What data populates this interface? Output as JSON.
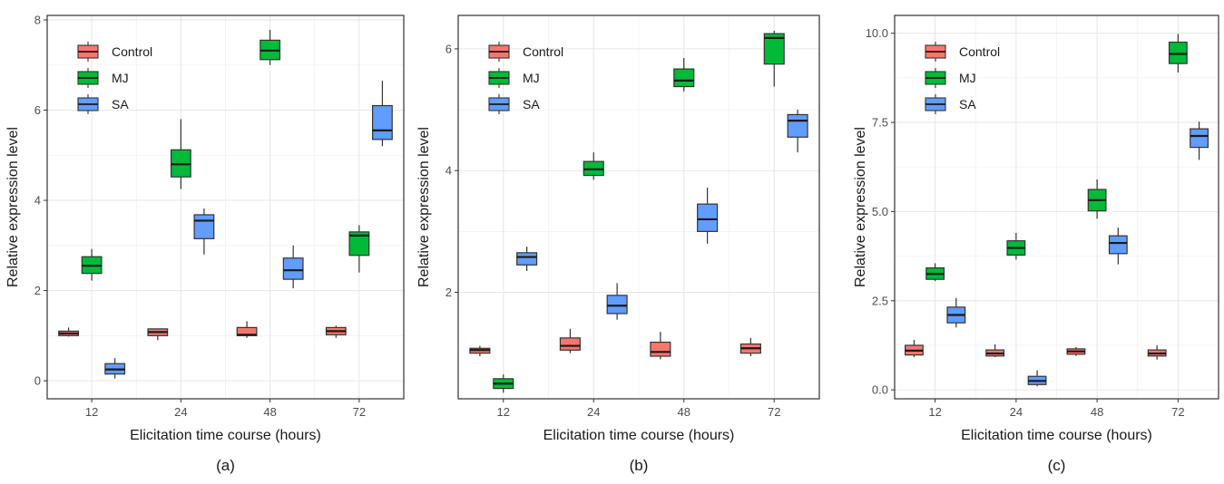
{
  "series_colors": {
    "Control": "#F8766D",
    "MJ": "#00BA38",
    "SA": "#619CFF"
  },
  "chart_data": [
    {
      "type": "box",
      "panel_label": "(a)",
      "xlabel": "Elicitation time course (hours)",
      "ylabel": "Relative expression level",
      "categories": [
        "12",
        "24",
        "48",
        "72"
      ],
      "ylim": [
        -0.4,
        8.1
      ],
      "yticks": [
        0,
        2,
        4,
        6,
        8
      ],
      "ytick_labels": [
        "0",
        "2",
        "4",
        "6",
        "8"
      ],
      "grid": true,
      "legend": {
        "position": "top-left",
        "entries": [
          "Control",
          "MJ",
          "SA"
        ]
      },
      "series": [
        {
          "name": "Control",
          "boxes": [
            {
              "min": 0.98,
              "q1": 1.0,
              "median": 1.05,
              "q3": 1.1,
              "max": 1.18
            },
            {
              "min": 0.9,
              "q1": 1.0,
              "median": 1.08,
              "q3": 1.15,
              "max": 1.15
            },
            {
              "min": 0.95,
              "q1": 1.0,
              "median": 1.02,
              "q3": 1.18,
              "max": 1.32
            },
            {
              "min": 0.95,
              "q1": 1.02,
              "median": 1.1,
              "q3": 1.18,
              "max": 1.22
            }
          ]
        },
        {
          "name": "MJ",
          "boxes": [
            {
              "min": 2.22,
              "q1": 2.38,
              "median": 2.55,
              "q3": 2.75,
              "max": 2.92
            },
            {
              "min": 4.25,
              "q1": 4.52,
              "median": 4.8,
              "q3": 5.12,
              "max": 5.8
            },
            {
              "min": 7.0,
              "q1": 7.12,
              "median": 7.32,
              "q3": 7.55,
              "max": 7.78
            },
            {
              "min": 2.4,
              "q1": 2.78,
              "median": 3.22,
              "q3": 3.3,
              "max": 3.45
            }
          ]
        },
        {
          "name": "SA",
          "boxes": [
            {
              "min": 0.05,
              "q1": 0.15,
              "median": 0.25,
              "q3": 0.38,
              "max": 0.5
            },
            {
              "min": 2.8,
              "q1": 3.15,
              "median": 3.55,
              "q3": 3.68,
              "max": 3.82
            },
            {
              "min": 2.05,
              "q1": 2.25,
              "median": 2.45,
              "q3": 2.72,
              "max": 3.0
            },
            {
              "min": 5.2,
              "q1": 5.35,
              "median": 5.55,
              "q3": 6.1,
              "max": 6.65
            }
          ]
        }
      ]
    },
    {
      "type": "box",
      "panel_label": "(b)",
      "xlabel": "Elicitation time course (hours)",
      "ylabel": "Relative expression level",
      "categories": [
        "12",
        "24",
        "48",
        "72"
      ],
      "ylim": [
        0.25,
        6.55
      ],
      "yticks": [
        2,
        4,
        6
      ],
      "ytick_labels": [
        "2",
        "4",
        "6"
      ],
      "grid": true,
      "legend": {
        "position": "top-left",
        "entries": [
          "Control",
          "MJ",
          "SA"
        ]
      },
      "series": [
        {
          "name": "Control",
          "boxes": [
            {
              "min": 0.95,
              "q1": 1.0,
              "median": 1.05,
              "q3": 1.08,
              "max": 1.12
            },
            {
              "min": 1.0,
              "q1": 1.05,
              "median": 1.12,
              "q3": 1.25,
              "max": 1.4
            },
            {
              "min": 0.9,
              "q1": 0.95,
              "median": 1.02,
              "q3": 1.18,
              "max": 1.35
            },
            {
              "min": 0.95,
              "q1": 1.0,
              "median": 1.08,
              "q3": 1.15,
              "max": 1.25
            }
          ]
        },
        {
          "name": "MJ",
          "boxes": [
            {
              "min": 0.35,
              "q1": 0.42,
              "median": 0.5,
              "q3": 0.58,
              "max": 0.65
            },
            {
              "min": 3.85,
              "q1": 3.92,
              "median": 4.02,
              "q3": 4.15,
              "max": 4.3
            },
            {
              "min": 5.3,
              "q1": 5.38,
              "median": 5.48,
              "q3": 5.67,
              "max": 5.85
            },
            {
              "min": 5.38,
              "q1": 5.75,
              "median": 6.18,
              "q3": 6.25,
              "max": 6.3
            }
          ]
        },
        {
          "name": "SA",
          "boxes": [
            {
              "min": 2.35,
              "q1": 2.45,
              "median": 2.58,
              "q3": 2.65,
              "max": 2.75
            },
            {
              "min": 1.55,
              "q1": 1.65,
              "median": 1.78,
              "q3": 1.95,
              "max": 2.15
            },
            {
              "min": 2.8,
              "q1": 3.0,
              "median": 3.2,
              "q3": 3.45,
              "max": 3.72
            },
            {
              "min": 4.3,
              "q1": 4.55,
              "median": 4.82,
              "q3": 4.92,
              "max": 5.0
            }
          ]
        }
      ]
    },
    {
      "type": "box",
      "panel_label": "(c)",
      "xlabel": "Elicitation time course (hours)",
      "ylabel": "Relative expression level",
      "categories": [
        "12",
        "24",
        "48",
        "72"
      ],
      "ylim": [
        -0.25,
        10.5
      ],
      "yticks": [
        0,
        2.5,
        5,
        7.5,
        10
      ],
      "ytick_labels": [
        "0.0",
        "2.5",
        "5.0",
        "7.5",
        "10.0"
      ],
      "grid": true,
      "legend": {
        "position": "top-left",
        "entries": [
          "Control",
          "MJ",
          "SA"
        ]
      },
      "series": [
        {
          "name": "Control",
          "boxes": [
            {
              "min": 0.92,
              "q1": 0.98,
              "median": 1.1,
              "q3": 1.25,
              "max": 1.4
            },
            {
              "min": 0.92,
              "q1": 0.95,
              "median": 1.02,
              "q3": 1.12,
              "max": 1.28
            },
            {
              "min": 0.95,
              "q1": 1.0,
              "median": 1.08,
              "q3": 1.15,
              "max": 1.2
            },
            {
              "min": 0.85,
              "q1": 0.95,
              "median": 1.02,
              "q3": 1.12,
              "max": 1.25
            }
          ]
        },
        {
          "name": "MJ",
          "boxes": [
            {
              "min": 3.05,
              "q1": 3.1,
              "median": 3.25,
              "q3": 3.42,
              "max": 3.55
            },
            {
              "min": 3.65,
              "q1": 3.78,
              "median": 3.98,
              "q3": 4.18,
              "max": 4.4
            },
            {
              "min": 4.8,
              "q1": 5.02,
              "median": 5.32,
              "q3": 5.62,
              "max": 5.9
            },
            {
              "min": 8.9,
              "q1": 9.15,
              "median": 9.42,
              "q3": 9.75,
              "max": 9.98
            }
          ]
        },
        {
          "name": "SA",
          "boxes": [
            {
              "min": 1.75,
              "q1": 1.88,
              "median": 2.1,
              "q3": 2.32,
              "max": 2.58
            },
            {
              "min": 0.1,
              "q1": 0.15,
              "median": 0.25,
              "q3": 0.38,
              "max": 0.55
            },
            {
              "min": 3.52,
              "q1": 3.82,
              "median": 4.12,
              "q3": 4.32,
              "max": 4.55
            },
            {
              "min": 6.45,
              "q1": 6.8,
              "median": 7.12,
              "q3": 7.32,
              "max": 7.52
            }
          ]
        }
      ]
    }
  ]
}
